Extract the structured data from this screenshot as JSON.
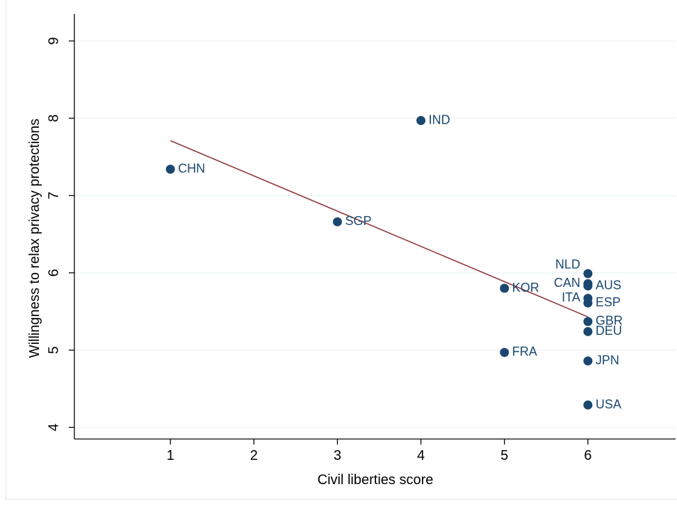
{
  "chart_data": {
    "type": "scatter",
    "title": "",
    "xlabel": "Civil liberties score",
    "ylabel": "Willingness to relax privacy protections",
    "xlim": [
      -0.15,
      7.05
    ],
    "ylim": [
      3.85,
      9.35
    ],
    "xticks": [
      1,
      2,
      3,
      4,
      5,
      6
    ],
    "yticks": [
      4,
      5,
      6,
      7,
      8,
      9
    ],
    "grid": true,
    "legend": "none",
    "points": [
      {
        "label": "CHN",
        "x": 1,
        "y": 7.34,
        "label_pos": "right"
      },
      {
        "label": "IND",
        "x": 4,
        "y": 7.97,
        "label_pos": "right"
      },
      {
        "label": "SGP",
        "x": 3,
        "y": 6.66,
        "label_pos": "right"
      },
      {
        "label": "KOR",
        "x": 5,
        "y": 5.8,
        "label_pos": "right"
      },
      {
        "label": "FRA",
        "x": 5,
        "y": 4.97,
        "label_pos": "right"
      },
      {
        "label": "NLD",
        "x": 6,
        "y": 5.99,
        "label_pos": "left-up"
      },
      {
        "label": "CAN",
        "x": 6,
        "y": 5.86,
        "label_pos": "left"
      },
      {
        "label": "AUS",
        "x": 6,
        "y": 5.83,
        "label_pos": "right"
      },
      {
        "label": "ITA",
        "x": 6,
        "y": 5.67,
        "label_pos": "left"
      },
      {
        "label": "ESP",
        "x": 6,
        "y": 5.61,
        "label_pos": "right"
      },
      {
        "label": "GBR",
        "x": 6,
        "y": 5.37,
        "label_pos": "right"
      },
      {
        "label": "DEU",
        "x": 6,
        "y": 5.24,
        "label_pos": "right"
      },
      {
        "label": "JPN",
        "x": 6,
        "y": 4.86,
        "label_pos": "right"
      },
      {
        "label": "USA",
        "x": 6,
        "y": 4.29,
        "label_pos": "right"
      }
    ],
    "fit_line": {
      "x": [
        1,
        6
      ],
      "y": [
        7.71,
        5.43
      ]
    },
    "colors": {
      "marker": "#1a476f",
      "label": "#1a476f",
      "fit_line": "#90353b",
      "grid": "#eaf2f3",
      "axis": "#000000"
    }
  }
}
